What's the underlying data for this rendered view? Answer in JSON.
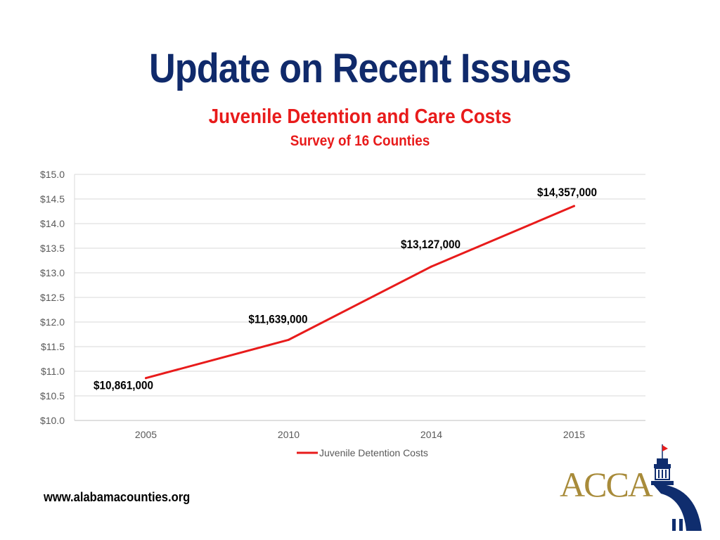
{
  "slide": {
    "title": "Update on Recent Issues",
    "footer_url": "www.alabamacounties.org",
    "logo_text": "ACCA"
  },
  "colors": {
    "title": "#102a6b",
    "accent_red": "#e81b1b",
    "logo_gold": "#a88b3a",
    "logo_navy": "#0f2d6e"
  },
  "chart_data": {
    "type": "line",
    "title": "Juvenile Detention and Care Costs",
    "subtitle": "Survey of 16 Counties",
    "categories": [
      "2005",
      "2010",
      "2014",
      "2015"
    ],
    "series": [
      {
        "name": "Juvenile Detention Costs",
        "values": [
          10.861,
          11.639,
          13.127,
          14.357
        ],
        "labels": [
          "$10,861,000",
          "$11,639,000",
          "$13,127,000",
          "$14,357,000"
        ]
      }
    ],
    "ylim": [
      10.0,
      15.0
    ],
    "yticks": [
      "$10.0",
      "$10.5",
      "$11.0",
      "$11.5",
      "$12.0",
      "$12.5",
      "$13.0",
      "$13.5",
      "$14.0",
      "$14.5",
      "$15.0"
    ],
    "grid": true,
    "legend": "bottom-center",
    "xlabel": "",
    "ylabel": ""
  }
}
